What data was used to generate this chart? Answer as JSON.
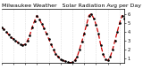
{
  "title": "Milwaukee Weather   Solar Radiation Avg per Day W/m2/minute",
  "bg_color": "#ffffff",
  "line_color": "#cc0000",
  "dot_color": "#000000",
  "grid_color": "#bbbbbb",
  "ylim": [
    0.5,
    6.5
  ],
  "ytick_values": [
    1,
    2,
    3,
    4,
    5,
    6
  ],
  "xlim": [
    0,
    52
  ],
  "x_values": [
    0,
    1,
    2,
    3,
    4,
    5,
    6,
    7,
    8,
    9,
    10,
    11,
    12,
    13,
    14,
    15,
    16,
    17,
    18,
    19,
    20,
    21,
    22,
    23,
    24,
    25,
    26,
    27,
    28,
    29,
    30,
    31,
    32,
    33,
    34,
    35,
    36,
    37,
    38,
    39,
    40,
    41,
    42,
    43,
    44,
    45,
    46,
    47,
    48,
    49,
    50,
    51,
    52
  ],
  "y_values": [
    4.5,
    4.3,
    4.0,
    3.7,
    3.4,
    3.2,
    3.0,
    2.8,
    2.6,
    2.5,
    2.6,
    3.0,
    3.6,
    4.5,
    5.2,
    5.8,
    5.4,
    4.9,
    4.4,
    3.8,
    3.2,
    2.6,
    2.0,
    1.5,
    1.2,
    0.9,
    0.8,
    0.7,
    0.6,
    0.55,
    0.6,
    0.8,
    1.2,
    2.0,
    2.9,
    3.8,
    4.8,
    5.8,
    6.0,
    5.5,
    4.8,
    3.8,
    2.5,
    1.5,
    0.9,
    0.8,
    1.2,
    2.0,
    3.0,
    4.0,
    5.0,
    5.8,
    5.5
  ],
  "x_grid_positions": [
    0,
    5,
    10,
    15,
    20,
    25,
    30,
    35,
    40,
    45,
    50
  ],
  "x_tick_positions": [
    0,
    5,
    10,
    15,
    20,
    25,
    30,
    35,
    40,
    45,
    50
  ],
  "x_tick_labels": [
    "",
    "",
    "",
    "",
    "",
    "",
    "",
    "",
    "",
    "",
    ""
  ],
  "title_fontsize": 4.5,
  "tick_fontsize": 3.5,
  "linewidth": 0.9,
  "markersize": 1.8,
  "dash_on": 4,
  "dash_off": 2
}
